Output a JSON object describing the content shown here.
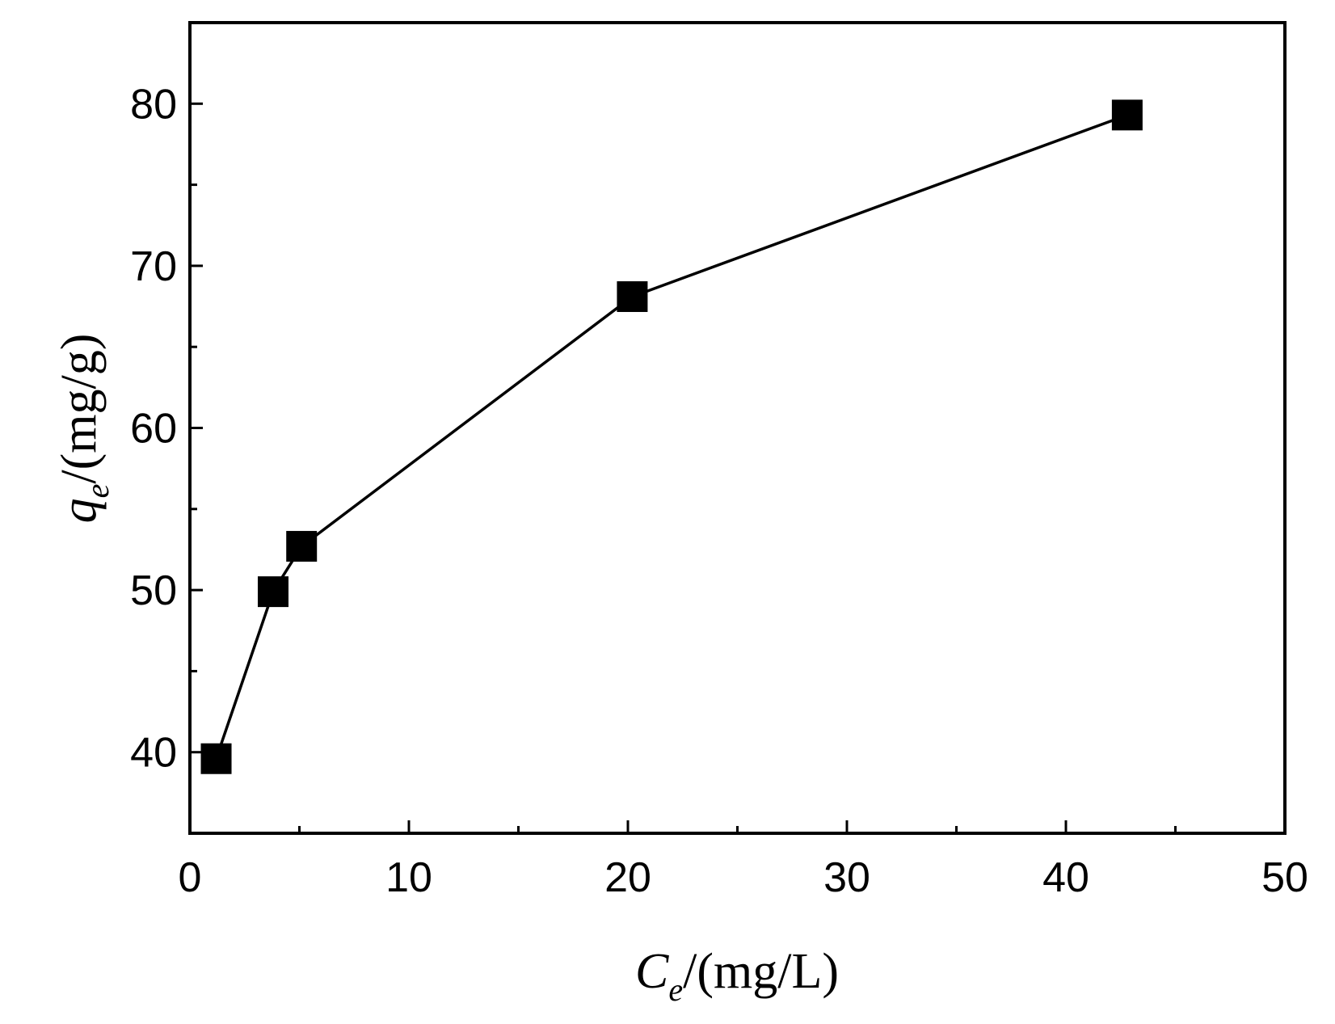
{
  "chart_data": {
    "type": "line",
    "x": [
      1.2,
      3.8,
      5.1,
      20.2,
      42.8
    ],
    "series": [
      {
        "values": [
          39.6,
          49.9,
          52.7,
          68.1,
          79.3
        ],
        "marker": "square",
        "color": "#000000"
      }
    ],
    "xlabel": {
      "var": "C",
      "sub": "e",
      "unit": "/(mg/L)"
    },
    "ylabel": {
      "var": "q",
      "sub": "e",
      "unit": "/(mg/g)"
    },
    "xlim": [
      0,
      50
    ],
    "ylim": [
      35,
      85
    ],
    "x_ticks": [
      "0",
      "10",
      "20",
      "30",
      "40",
      "50"
    ],
    "y_ticks": [
      "40",
      "50",
      "60",
      "70",
      "80"
    ],
    "grid": false
  }
}
